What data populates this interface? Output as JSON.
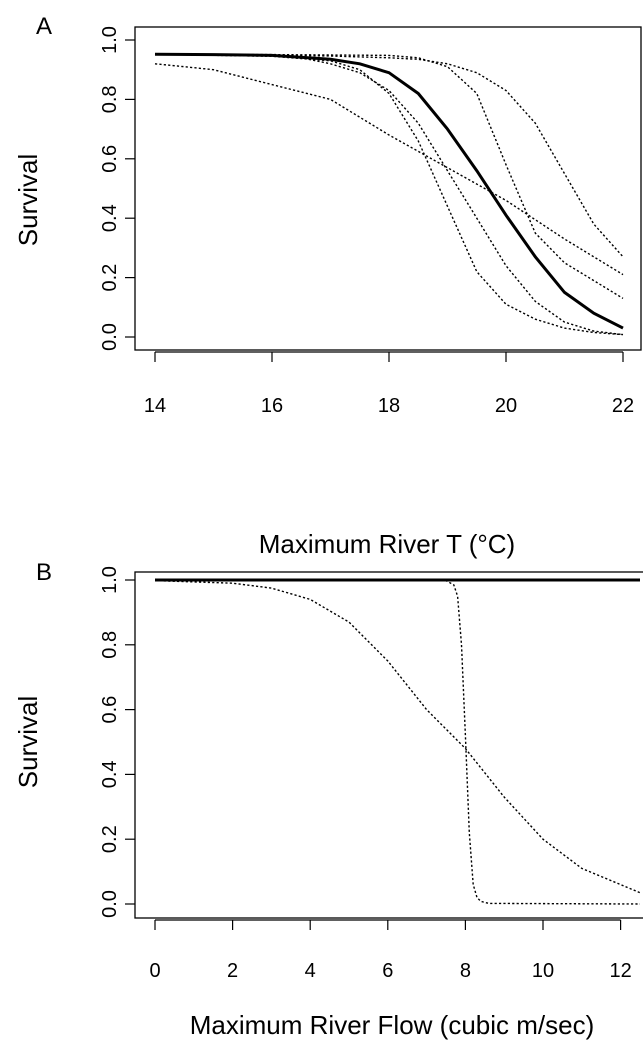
{
  "chart_data": [
    {
      "panel": "A",
      "type": "line",
      "xlabel": "Maximum River T (°C)",
      "ylabel": "Survival",
      "xlim": [
        14,
        22
      ],
      "ylim": [
        0.0,
        1.0
      ],
      "x_ticks": [
        "14",
        "16",
        "18",
        "20",
        "22"
      ],
      "y_ticks": [
        "0.0",
        "0.2",
        "0.4",
        "0.6",
        "0.8",
        "1.0"
      ],
      "grid": false,
      "series": [
        {
          "style": "solid",
          "x": [
            14,
            15,
            16,
            17,
            17.5,
            18,
            18.5,
            19,
            19.5,
            20,
            20.5,
            21,
            21.5,
            22
          ],
          "y": [
            0.952,
            0.951,
            0.948,
            0.935,
            0.92,
            0.89,
            0.82,
            0.7,
            0.56,
            0.41,
            0.27,
            0.15,
            0.08,
            0.03
          ]
        },
        {
          "style": "dotted",
          "x": [
            14,
            16,
            17,
            17.5,
            18,
            18.5,
            19,
            19.5,
            20,
            20.5,
            21,
            21.5,
            22
          ],
          "y": [
            0.952,
            0.945,
            0.93,
            0.9,
            0.82,
            0.66,
            0.44,
            0.22,
            0.11,
            0.06,
            0.03,
            0.015,
            0.008
          ]
        },
        {
          "style": "dotted",
          "x": [
            14,
            15,
            16,
            16.5,
            17,
            17.5,
            18,
            18.5,
            19,
            19.5,
            20,
            20.5,
            21,
            21.5,
            22
          ],
          "y": [
            0.952,
            0.951,
            0.948,
            0.94,
            0.92,
            0.89,
            0.83,
            0.72,
            0.56,
            0.4,
            0.24,
            0.12,
            0.05,
            0.02,
            0.008
          ]
        },
        {
          "style": "dotted",
          "x": [
            14,
            16,
            18,
            18.5,
            19,
            19.5,
            20,
            20.5,
            21,
            21.5,
            22
          ],
          "y": [
            0.952,
            0.951,
            0.948,
            0.94,
            0.91,
            0.82,
            0.58,
            0.35,
            0.25,
            0.19,
            0.13
          ]
        },
        {
          "style": "dotted",
          "x": [
            14,
            15,
            16,
            17,
            18,
            18.5,
            19,
            19.5,
            20,
            20.5,
            21,
            21.5,
            22
          ],
          "y": [
            0.952,
            0.951,
            0.949,
            0.946,
            0.94,
            0.935,
            0.92,
            0.89,
            0.83,
            0.72,
            0.55,
            0.38,
            0.27
          ]
        },
        {
          "style": "dotted",
          "x": [
            14,
            14.5,
            15,
            16,
            17,
            18,
            19,
            20,
            21,
            22
          ],
          "y": [
            0.92,
            0.91,
            0.9,
            0.85,
            0.8,
            0.68,
            0.57,
            0.46,
            0.33,
            0.21
          ]
        }
      ]
    },
    {
      "panel": "B",
      "type": "line",
      "xlabel": "Maximum River Flow (cubic m/sec)",
      "ylabel": "Survival",
      "xlim": [
        0,
        12.5
      ],
      "ylim": [
        0.0,
        1.0
      ],
      "x_ticks": [
        "0",
        "2",
        "4",
        "6",
        "8",
        "10",
        "12"
      ],
      "y_ticks": [
        "0.0",
        "0.2",
        "0.4",
        "0.6",
        "0.8",
        "1.0"
      ],
      "grid": false,
      "series": [
        {
          "style": "solid",
          "x": [
            0,
            12.5
          ],
          "y": [
            1.0,
            1.0
          ]
        },
        {
          "style": "dotted",
          "x": [
            0,
            2,
            3,
            4,
            5,
            6,
            7,
            8,
            9,
            10,
            11,
            12,
            12.5
          ],
          "y": [
            0.998,
            0.99,
            0.975,
            0.94,
            0.87,
            0.75,
            0.6,
            0.48,
            0.33,
            0.2,
            0.11,
            0.06,
            0.035
          ]
        },
        {
          "style": "dotted",
          "x": [
            0,
            7,
            7.5,
            7.7,
            7.8,
            7.9,
            8.0,
            8.1,
            8.2,
            8.3,
            8.4,
            8.6,
            12.5
          ],
          "y": [
            1.0,
            1.0,
            0.998,
            0.985,
            0.95,
            0.8,
            0.52,
            0.22,
            0.06,
            0.02,
            0.008,
            0.002,
            0.0
          ]
        }
      ]
    }
  ]
}
